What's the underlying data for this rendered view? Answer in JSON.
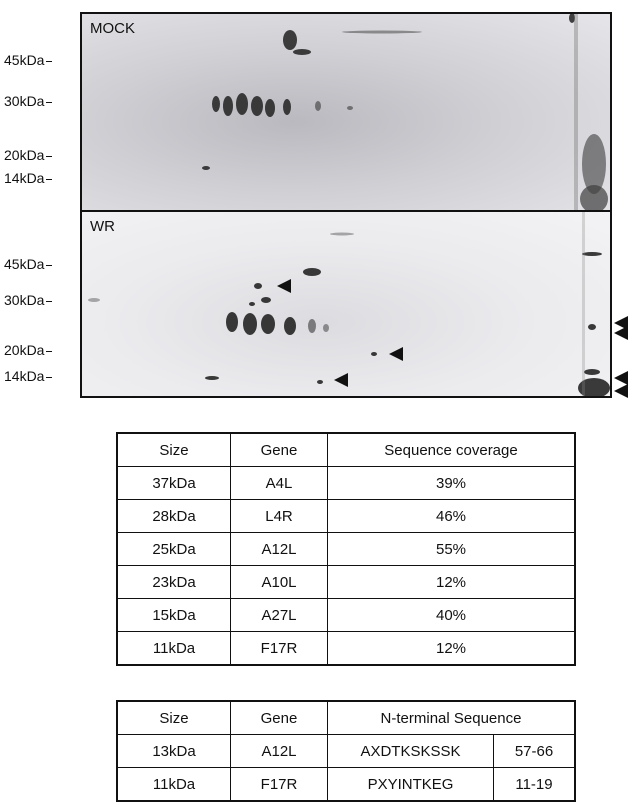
{
  "panels": {
    "mock": {
      "label": "MOCK"
    },
    "wr": {
      "label": "WR"
    }
  },
  "markers": {
    "mock": [
      "45kDa",
      "30kDa",
      "20kDa",
      "14kDa"
    ],
    "wr": [
      "45kDa",
      "30kDa",
      "20kDa",
      "14kDa"
    ]
  },
  "coverage_table": {
    "headers": [
      "Size",
      "Gene",
      "Sequence coverage"
    ],
    "rows": [
      [
        "37kDa",
        "A4L",
        "39%"
      ],
      [
        "28kDa",
        "L4R",
        "46%"
      ],
      [
        "25kDa",
        "A12L",
        "55%"
      ],
      [
        "23kDa",
        "A10L",
        "12%"
      ],
      [
        "15kDa",
        "A27L",
        "40%"
      ],
      [
        "11kDa",
        "F17R",
        "12%"
      ]
    ]
  },
  "nterminal_table": {
    "headers": [
      "Size",
      "Gene",
      "N-terminal Sequence"
    ],
    "rows": [
      [
        "13kDa",
        "A12L",
        "AXDTKSKSSK",
        "57-66"
      ],
      [
        "11kDa",
        "F17R",
        "PXYINTKEG",
        "11-19"
      ]
    ]
  }
}
